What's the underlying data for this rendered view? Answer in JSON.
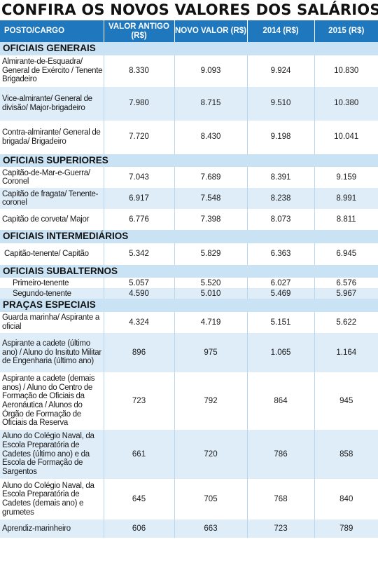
{
  "title": "CONFIRA OS NOVOS VALORES DOS SALÁRIOS",
  "headers": [
    "POSTO/CARGO",
    "VALOR ANTIGO (R$)",
    "NOVO VALOR (R$)",
    "2014 (R$)",
    "2015 (R$)"
  ],
  "sections": [
    {
      "name": "OFICIAIS GENERAIS",
      "rows": [
        {
          "posto": "Almirante-de-Esquadra/ General de Exército / Tenente Brigadeiro",
          "antigo": "8.330",
          "novo": "9.093",
          "y2014": "9.924",
          "y2015": "10.830"
        },
        {
          "posto": "Vice-almirante/ General de divisão/ Major-brigadeiro",
          "antigo": "7.980",
          "novo": "8.715",
          "y2014": "9.510",
          "y2015": "10.380"
        },
        {
          "posto": "Contra-almirante/ General de brigada/ Brigadeiro",
          "antigo": "7.720",
          "novo": "8.430",
          "y2014": "9.198",
          "y2015": "10.041"
        }
      ]
    },
    {
      "name": "OFICIAIS SUPERIORES",
      "rows": [
        {
          "posto": "Capitão-de-Mar-e-Guerra/ Coronel",
          "antigo": "7.043",
          "novo": "7.689",
          "y2014": "8.391",
          "y2015": "9.159"
        },
        {
          "posto": "Capitão de fragata/ Tenente-coronel",
          "antigo": "6.917",
          "novo": "7.548",
          "y2014": "8.238",
          "y2015": "8.991"
        },
        {
          "posto": "Capitão de corveta/ Major",
          "antigo": "6.776",
          "novo": "7.398",
          "y2014": "8.073",
          "y2015": "8.811"
        }
      ]
    },
    {
      "name": "OFICIAIS INTERMEDIÁRIOS",
      "rows": [
        {
          "posto": "Capitão-tenente/ Capitão",
          "antigo": "5.342",
          "novo": "5.829",
          "y2014": "6.363",
          "y2015": "6.945"
        }
      ]
    },
    {
      "name": "OFICIAIS SUBALTERNOS",
      "rows": [
        {
          "posto": "Primeiro-tenente",
          "antigo": "5.057",
          "novo": "5.520",
          "y2014": "6.027",
          "y2015": "6.576"
        },
        {
          "posto": "Segundo-tenente",
          "antigo": "4.590",
          "novo": "5.010",
          "y2014": "5.469",
          "y2015": "5.967"
        }
      ]
    },
    {
      "name": "PRAÇAS ESPECIAIS",
      "rows": [
        {
          "posto": "Guarda marinha/ Aspirante a oficial",
          "antigo": "4.324",
          "novo": "4.719",
          "y2014": "5.151",
          "y2015": "5.622"
        },
        {
          "posto": "Aspirante a cadete (último ano) / Aluno do Insituto Militar de Engenharia (último ano)",
          "antigo": "896",
          "novo": "975",
          "y2014": "1.065",
          "y2015": "1.164"
        },
        {
          "posto": "Aspirante a cadete (demais anos) / Aluno do Centro de Formação de Oficiais da Aeronáutica / Alunos do Órgão de Formação de Oficiais da Reserva",
          "antigo": "723",
          "novo": "792",
          "y2014": "864",
          "y2015": "945"
        },
        {
          "posto": "Aluno do Colégio Naval, da Escola Preparatória de Cadetes (último ano) e da Escola de Formação de Sargentos",
          "antigo": "661",
          "novo": "720",
          "y2014": "786",
          "y2015": "858"
        },
        {
          "posto": "Aluno do Colégio Naval, da Escola Preparatória de Cadetes (demais ano) e grumetes",
          "antigo": "645",
          "novo": "705",
          "y2014": "768",
          "y2015": "840"
        },
        {
          "posto": "Aprendiz-marinheiro",
          "antigo": "606",
          "novo": "663",
          "y2014": "723",
          "y2015": "789"
        }
      ]
    }
  ],
  "colors": {
    "header_bg": "#1f78be",
    "section_bg": "#c9e2f4",
    "row_tint": "#dfedf8"
  }
}
